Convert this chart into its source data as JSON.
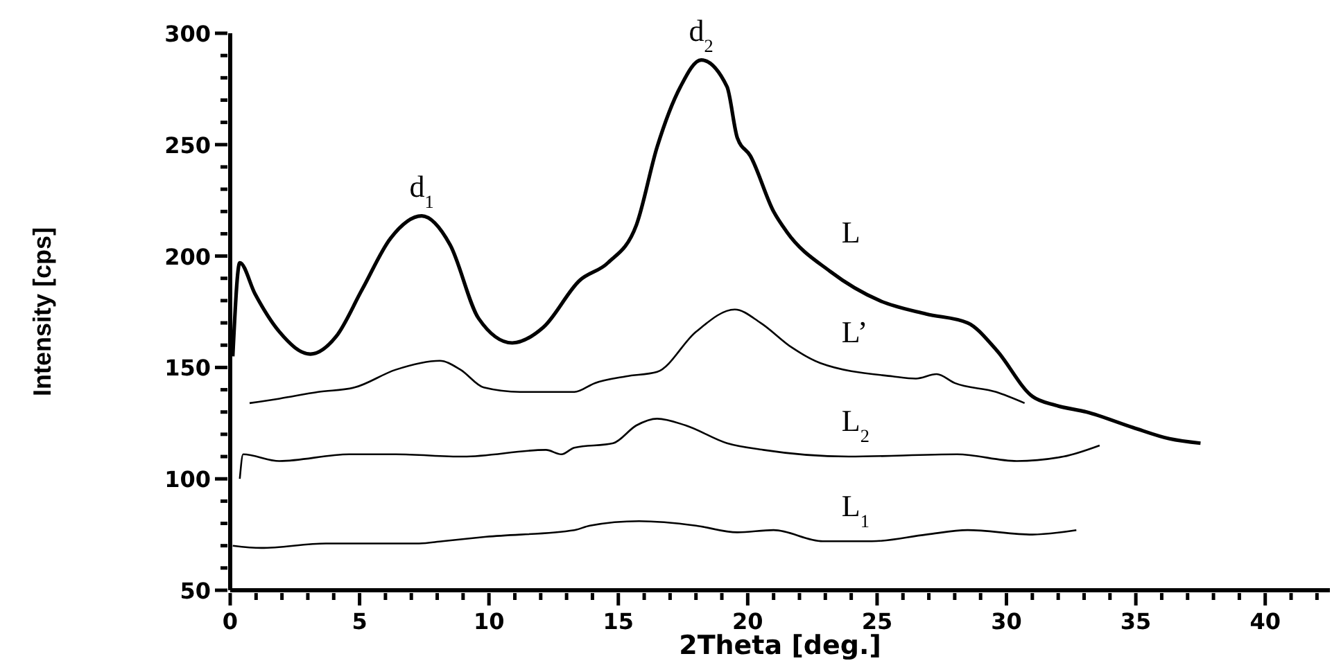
{
  "chart_data": {
    "type": "line",
    "xlabel": "2Theta [deg.]",
    "ylabel": "Intensity [cps]",
    "xlim": [
      0,
      42.5
    ],
    "ylim": [
      50,
      300
    ],
    "xticks": [
      0,
      {
        "value": 1,
        "label": null
      },
      {
        "value": 2,
        "label": null
      },
      {
        "value": 3,
        "label": null
      },
      {
        "value": 4,
        "label": null
      },
      5,
      {
        "value": 6,
        "label": null
      },
      {
        "value": 7,
        "label": null
      },
      {
        "value": 8,
        "label": null
      },
      {
        "value": 9,
        "label": null
      },
      10,
      {
        "value": 11,
        "label": null
      },
      {
        "value": 12,
        "label": null
      },
      {
        "value": 13,
        "label": null
      },
      {
        "value": 14,
        "label": null
      },
      15,
      {
        "value": 16,
        "label": null
      },
      {
        "value": 17,
        "label": null
      },
      {
        "value": 18,
        "label": null
      },
      {
        "value": 19,
        "label": null
      },
      20,
      {
        "value": 21,
        "label": null
      },
      {
        "value": 22,
        "label": null
      },
      {
        "value": 23,
        "label": null
      },
      {
        "value": 24,
        "label": null
      },
      25,
      {
        "value": 26,
        "label": null
      },
      {
        "value": 27,
        "label": null
      },
      {
        "value": 28,
        "label": null
      },
      {
        "value": 29,
        "label": null
      },
      30,
      {
        "value": 31,
        "label": null
      },
      {
        "value": 32,
        "label": null
      },
      {
        "value": 33,
        "label": null
      },
      {
        "value": 34,
        "label": null
      },
      35,
      {
        "value": 36,
        "label": null
      },
      {
        "value": 37,
        "label": null
      },
      {
        "value": 38,
        "label": null
      },
      {
        "value": 39,
        "label": null
      },
      40,
      {
        "value": 41,
        "label": null
      },
      {
        "value": 42,
        "label": null
      }
    ],
    "yticks": [
      50,
      {
        "value": 60,
        "label": null
      },
      {
        "value": 70,
        "label": null
      },
      {
        "value": 80,
        "label": null
      },
      {
        "value": 90,
        "label": null
      },
      100,
      {
        "value": 110,
        "label": null
      },
      {
        "value": 120,
        "label": null
      },
      {
        "value": 130,
        "label": null
      },
      {
        "value": 140,
        "label": null
      },
      150,
      {
        "value": 160,
        "label": null
      },
      {
        "value": 170,
        "label": null
      },
      {
        "value": 180,
        "label": null
      },
      {
        "value": 190,
        "label": null
      },
      200,
      {
        "value": 210,
        "label": null
      },
      {
        "value": 220,
        "label": null
      },
      {
        "value": 230,
        "label": null
      },
      {
        "value": 240,
        "label": null
      },
      250,
      {
        "value": 260,
        "label": null
      },
      {
        "value": 270,
        "label": null
      },
      {
        "value": 280,
        "label": null
      },
      {
        "value": 290,
        "label": null
      },
      300
    ],
    "series": [
      {
        "name": "L",
        "color": "#000000",
        "x": [
          0.1,
          0.37,
          0.96,
          1.9,
          3.1,
          4.1,
          5.1,
          6.2,
          7.4,
          8.5,
          9.6,
          10.9,
          12.1,
          13.5,
          14.6,
          15.7,
          16.5,
          17.4,
          18.2,
          19.2,
          19.6,
          20.1,
          21.0,
          21.5,
          23.2,
          25.1,
          26.9,
          28.5,
          29.6,
          31.0,
          31.9,
          33.1,
          34.9,
          36.3,
          37.5
        ],
        "values": [
          155,
          197,
          183,
          166,
          156,
          164,
          185,
          208,
          218,
          205,
          172,
          161,
          168,
          189,
          197,
          214,
          249,
          276,
          288,
          276,
          253,
          245,
          220,
          211,
          193,
          180,
          174,
          170,
          158,
          137,
          133,
          130,
          123,
          118,
          116
        ]
      },
      {
        "name": "L’",
        "color": "#000000",
        "x": [
          0.75,
          1.9,
          3.4,
          4.8,
          6.4,
          8.1,
          8.9,
          9.8,
          11.2,
          13.3,
          14.1,
          15.3,
          16.5,
          18.0,
          19.5,
          20.5,
          21.7,
          22.8,
          25.6,
          26.5,
          27.3,
          28.0,
          29.6,
          30.7
        ],
        "values": [
          134,
          136,
          139,
          141,
          149,
          153,
          149,
          141,
          139,
          139,
          143,
          146,
          148,
          166,
          176,
          170,
          159,
          152,
          146,
          145,
          147,
          143,
          139,
          134
        ]
      },
      {
        "name": "L$_{2}$",
        "color": "#000000",
        "x": [
          0.37,
          0.5,
          1.9,
          4.6,
          6.4,
          9.0,
          12.2,
          12.8,
          13.3,
          14.8,
          15.7,
          16.5,
          17.6,
          19.2,
          20.6,
          23.9,
          28.1,
          30.4,
          32.2,
          33.6
        ],
        "values": [
          100,
          111,
          108,
          111,
          111,
          110,
          113,
          111,
          114,
          116,
          124,
          127,
          124,
          116,
          113,
          110,
          111,
          108,
          110,
          115
        ]
      },
      {
        "name": "L$_{1}$",
        "color": "#000000",
        "x": [
          0.1,
          1.2,
          3.7,
          7.3,
          8.2,
          9.9,
          13.3,
          13.9,
          15.8,
          18.0,
          19.6,
          21.0,
          22.9,
          24.8,
          26.9,
          28.5,
          31.0,
          32.7
        ],
        "values": [
          70,
          69,
          71,
          71,
          72,
          74,
          77,
          79,
          81,
          79,
          76,
          77,
          72,
          72,
          75,
          77,
          75,
          77
        ]
      }
    ],
    "annotations": [
      {
        "text": "d$_{1}$",
        "x": 7.4,
        "y": 218
      },
      {
        "text": "d$_{2}$",
        "x": 18.2,
        "y": 288
      }
    ]
  }
}
